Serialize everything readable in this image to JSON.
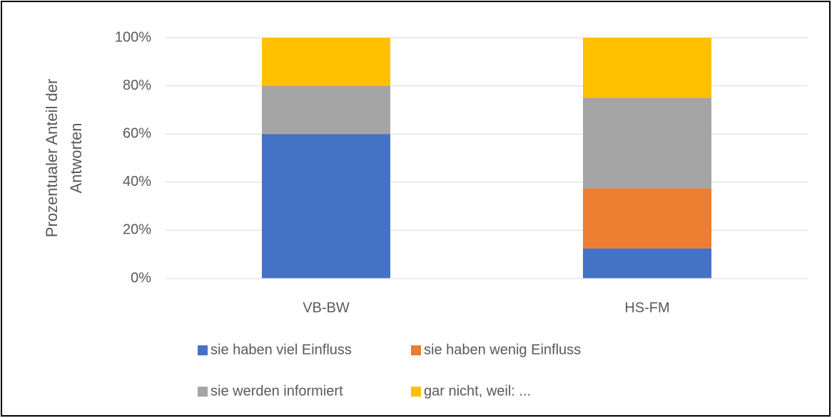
{
  "chart_data": {
    "type": "stacked_bar",
    "ylabel": [
      "Prozentualer Anteil der",
      "Antworten"
    ],
    "categories": [
      "VB-BW",
      "HS-FM"
    ],
    "series": [
      {
        "name": "sie haben viel Einfluss",
        "color": "#4472c4",
        "values": [
          60,
          12.5
        ]
      },
      {
        "name": "sie haben wenig Einfluss",
        "color": "#ed7d31",
        "values": [
          0,
          25
        ]
      },
      {
        "name": "sie werden informiert",
        "color": "#a5a5a5",
        "values": [
          20,
          37.5
        ]
      },
      {
        "name": "gar nicht, weil: ...",
        "color": "#ffc000",
        "values": [
          20,
          25
        ]
      }
    ],
    "ylim": [
      0,
      100
    ],
    "yticks": [
      {
        "value": 0,
        "label": "0%"
      },
      {
        "value": 20,
        "label": "20%"
      },
      {
        "value": 40,
        "label": "40%"
      },
      {
        "value": 60,
        "label": "60%"
      },
      {
        "value": 80,
        "label": "80%"
      },
      {
        "value": 100,
        "label": "100%"
      }
    ],
    "grid": true,
    "legend": "bottom"
  }
}
